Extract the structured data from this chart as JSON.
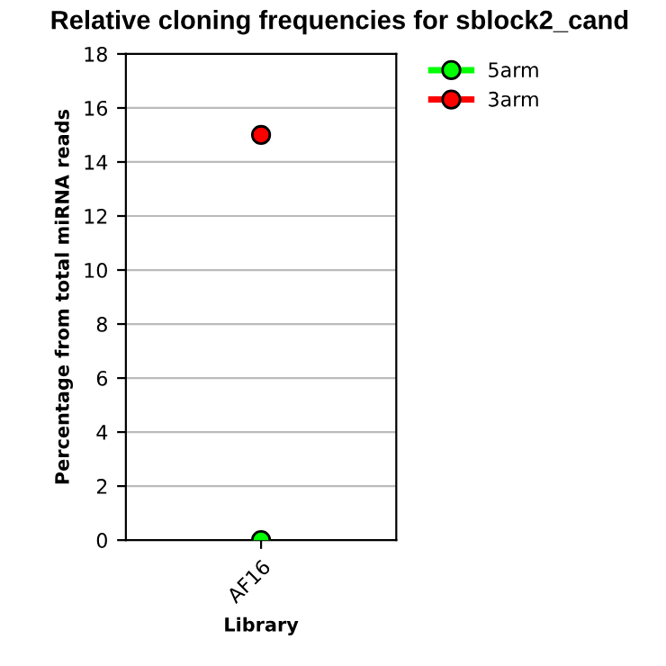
{
  "chart_data": {
    "type": "line",
    "title": "Relative cloning frequencies for sblock2_cand",
    "xlabel": "Library",
    "ylabel": "Percentage from total miRNA reads",
    "categories": [
      "AF16"
    ],
    "series": [
      {
        "name": "5arm",
        "color": "#00ff00",
        "values": [
          0
        ]
      },
      {
        "name": "3arm",
        "color": "#ff0000",
        "values": [
          15
        ]
      }
    ],
    "ylim": [
      0,
      18
    ],
    "yticks": [
      0,
      2,
      4,
      6,
      8,
      10,
      12,
      14,
      16,
      18
    ],
    "grid": "y",
    "legend": "top right",
    "marker": "circle",
    "line_style": "solid"
  }
}
